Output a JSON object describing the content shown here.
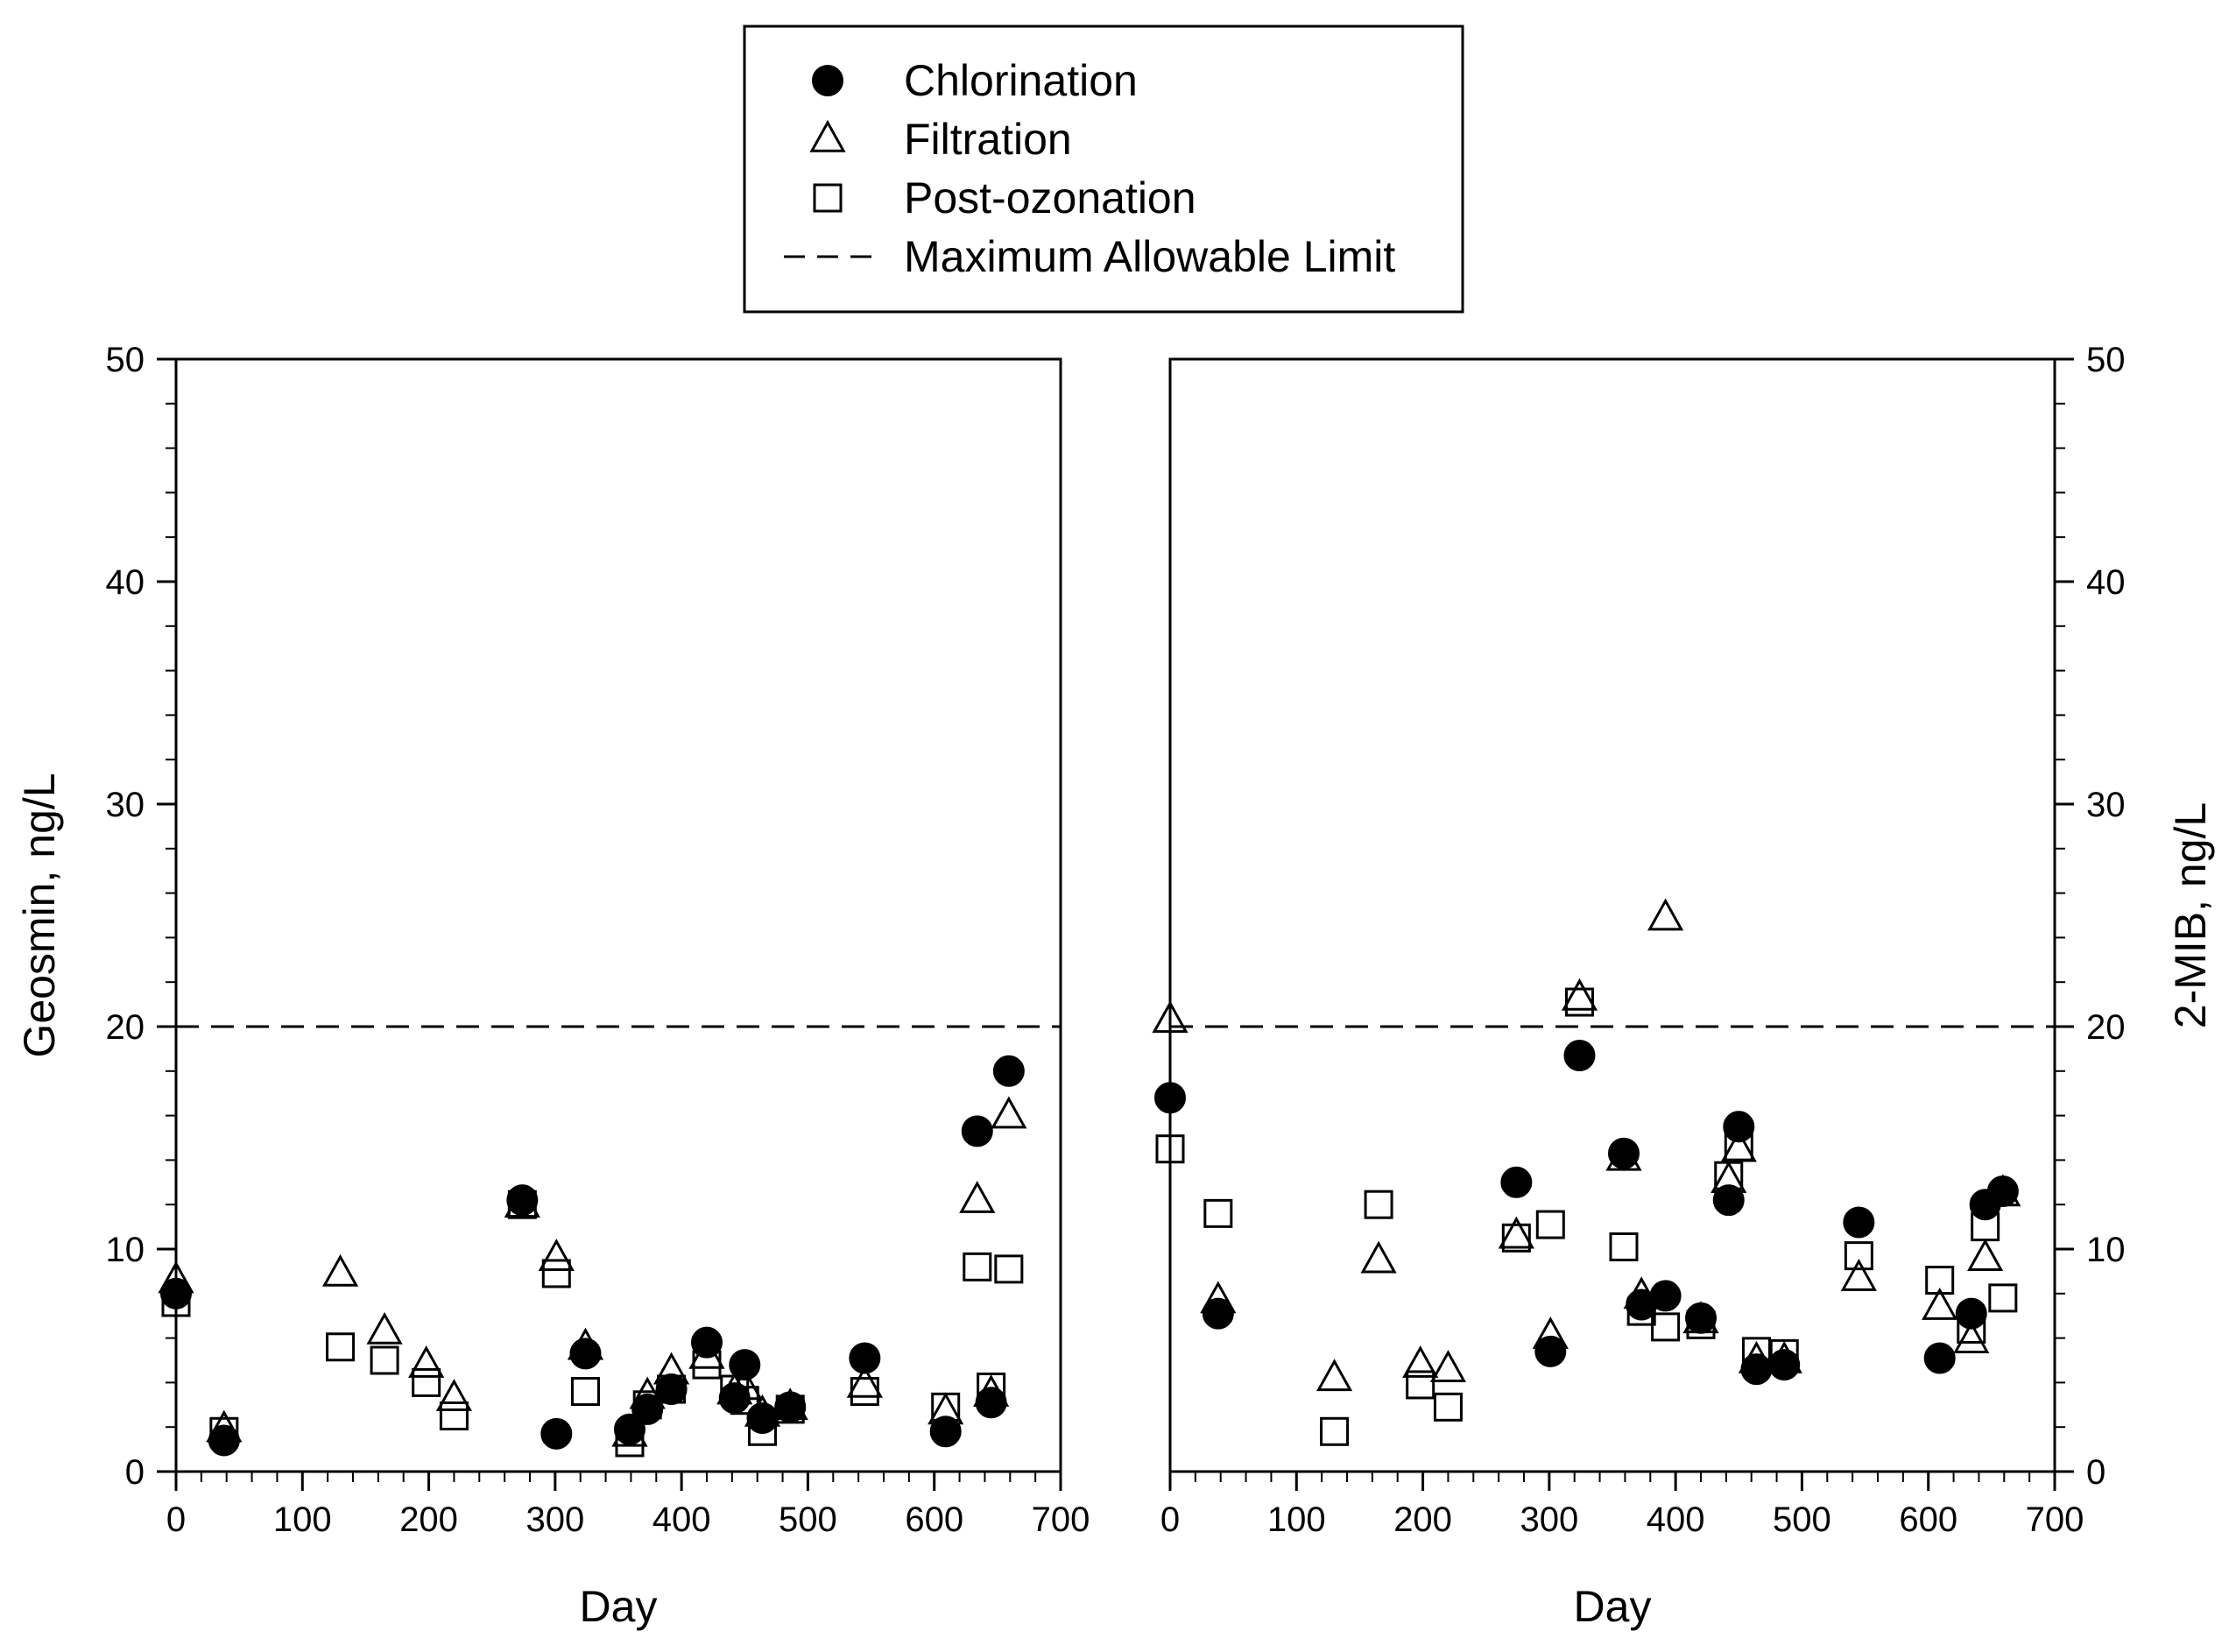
{
  "chart_data": [
    {
      "type": "scatter",
      "panel": "left",
      "xlabel": "Day",
      "ylabel": "Geosmin, ng/L",
      "xlim": [
        0,
        700
      ],
      "ylim": [
        0,
        50
      ],
      "xticks": [
        0,
        100,
        200,
        300,
        400,
        500,
        600,
        700
      ],
      "yticks": [
        0,
        10,
        20,
        30,
        40,
        50
      ],
      "xtick_labels": [
        "0",
        "100",
        "200",
        "300",
        "400",
        "500",
        "600",
        "700"
      ],
      "ytick_labels": [
        "0",
        "10",
        "20",
        "30",
        "40",
        "50"
      ],
      "grid": false,
      "reference_line": {
        "name": "Maximum Allowable Limit",
        "y": 20,
        "style": "dashed"
      },
      "series": [
        {
          "name": "Chlorination",
          "marker": "filled-circle",
          "points": [
            [
              0,
              8.0
            ],
            [
              38,
              1.4
            ],
            [
              274,
              12.2
            ],
            [
              301,
              1.7
            ],
            [
              324,
              5.3
            ],
            [
              359,
              1.9
            ],
            [
              373,
              2.8
            ],
            [
              392,
              3.7
            ],
            [
              420,
              5.8
            ],
            [
              442,
              3.3
            ],
            [
              450,
              4.8
            ],
            [
              464,
              2.4
            ],
            [
              486,
              2.9
            ],
            [
              545,
              5.1
            ],
            [
              609,
              1.8
            ],
            [
              634,
              15.3
            ],
            [
              645,
              3.1
            ],
            [
              659,
              18.0
            ]
          ]
        },
        {
          "name": "Filtration",
          "marker": "open-triangle",
          "points": [
            [
              0,
              8.6
            ],
            [
              38,
              1.9
            ],
            [
              130,
              8.9
            ],
            [
              165,
              6.3
            ],
            [
              198,
              4.8
            ],
            [
              220,
              3.3
            ],
            [
              274,
              12.0
            ],
            [
              301,
              9.6
            ],
            [
              324,
              5.6
            ],
            [
              359,
              1.7
            ],
            [
              373,
              3.4
            ],
            [
              392,
              4.5
            ],
            [
              420,
              5.2
            ],
            [
              442,
              3.6
            ],
            [
              450,
              3.8
            ],
            [
              464,
              2.6
            ],
            [
              486,
              2.9
            ],
            [
              545,
              3.9
            ],
            [
              609,
              2.7
            ],
            [
              634,
              12.2
            ],
            [
              645,
              3.5
            ],
            [
              659,
              16.0
            ]
          ]
        },
        {
          "name": "Post-ozonation",
          "marker": "open-square",
          "points": [
            [
              0,
              7.6
            ],
            [
              38,
              1.8
            ],
            [
              130,
              5.6
            ],
            [
              165,
              5.0
            ],
            [
              198,
              4.0
            ],
            [
              220,
              2.5
            ],
            [
              274,
              12.0
            ],
            [
              301,
              8.9
            ],
            [
              324,
              3.6
            ],
            [
              359,
              1.3
            ],
            [
              373,
              3.0
            ],
            [
              392,
              3.7
            ],
            [
              420,
              4.8
            ],
            [
              442,
              3.7
            ],
            [
              450,
              3.2
            ],
            [
              464,
              1.8
            ],
            [
              486,
              2.8
            ],
            [
              545,
              3.6
            ],
            [
              609,
              2.9
            ],
            [
              634,
              9.2
            ],
            [
              645,
              3.8
            ],
            [
              659,
              9.1
            ]
          ]
        }
      ]
    },
    {
      "type": "scatter",
      "panel": "right",
      "xlabel": "Day",
      "ylabel": "2-MIB, ng/L",
      "xlim": [
        0,
        700
      ],
      "ylim": [
        0,
        50
      ],
      "xticks": [
        0,
        100,
        200,
        300,
        400,
        500,
        600,
        700
      ],
      "yticks": [
        0,
        10,
        20,
        30,
        40,
        50
      ],
      "xtick_labels": [
        "0",
        "100",
        "200",
        "300",
        "400",
        "500",
        "600",
        "700"
      ],
      "ytick_labels": [
        "0",
        "10",
        "20",
        "30",
        "40",
        "50"
      ],
      "grid": false,
      "reference_line": {
        "name": "Maximum Allowable Limit",
        "y": 20,
        "style": "dashed"
      },
      "series": [
        {
          "name": "Chlorination",
          "marker": "filled-circle",
          "points": [
            [
              0,
              16.8
            ],
            [
              38,
              7.1
            ],
            [
              274,
              13.0
            ],
            [
              301,
              5.4
            ],
            [
              324,
              18.7
            ],
            [
              359,
              14.3
            ],
            [
              373,
              7.5
            ],
            [
              392,
              7.9
            ],
            [
              420,
              6.9
            ],
            [
              442,
              12.2
            ],
            [
              450,
              15.5
            ],
            [
              464,
              4.6
            ],
            [
              486,
              4.8
            ],
            [
              545,
              11.2
            ],
            [
              609,
              5.1
            ],
            [
              634,
              7.1
            ],
            [
              645,
              12.0
            ],
            [
              659,
              12.6
            ]
          ]
        },
        {
          "name": "Filtration",
          "marker": "open-triangle",
          "points": [
            [
              0,
              20.3
            ],
            [
              38,
              7.7
            ],
            [
              130,
              4.2
            ],
            [
              165,
              9.5
            ],
            [
              198,
              4.8
            ],
            [
              220,
              4.6
            ],
            [
              274,
              10.6
            ],
            [
              301,
              6.1
            ],
            [
              324,
              21.3
            ],
            [
              359,
              14.1
            ],
            [
              373,
              7.9
            ],
            [
              392,
              24.9
            ],
            [
              420,
              6.8
            ],
            [
              442,
              13.1
            ],
            [
              450,
              14.5
            ],
            [
              464,
              5.0
            ],
            [
              486,
              5.0
            ],
            [
              545,
              8.7
            ],
            [
              609,
              7.4
            ],
            [
              634,
              5.9
            ],
            [
              645,
              9.6
            ],
            [
              659,
              12.5
            ]
          ]
        },
        {
          "name": "Post-ozonation",
          "marker": "open-square",
          "points": [
            [
              0,
              14.5
            ],
            [
              38,
              11.6
            ],
            [
              130,
              1.8
            ],
            [
              165,
              12.0
            ],
            [
              198,
              3.9
            ],
            [
              220,
              2.9
            ],
            [
              274,
              10.5
            ],
            [
              301,
              11.1
            ],
            [
              324,
              21.1
            ],
            [
              359,
              10.1
            ],
            [
              373,
              7.2
            ],
            [
              392,
              6.5
            ],
            [
              420,
              6.6
            ],
            [
              442,
              13.3
            ],
            [
              450,
              14.6
            ],
            [
              464,
              5.4
            ],
            [
              486,
              5.3
            ],
            [
              545,
              9.7
            ],
            [
              609,
              8.6
            ],
            [
              634,
              6.4
            ],
            [
              645,
              11.0
            ],
            [
              659,
              7.8
            ]
          ]
        }
      ]
    }
  ],
  "legend": {
    "placement": "top-center",
    "entries": [
      {
        "label": "Chlorination",
        "marker": "filled-circle"
      },
      {
        "label": "Filtration",
        "marker": "open-triangle"
      },
      {
        "label": "Post-ozonation",
        "marker": "open-square"
      },
      {
        "label": "Maximum Allowable Limit",
        "marker": "dashed-line"
      }
    ]
  },
  "colors": {
    "ink": "#000000",
    "background": "#ffffff"
  }
}
